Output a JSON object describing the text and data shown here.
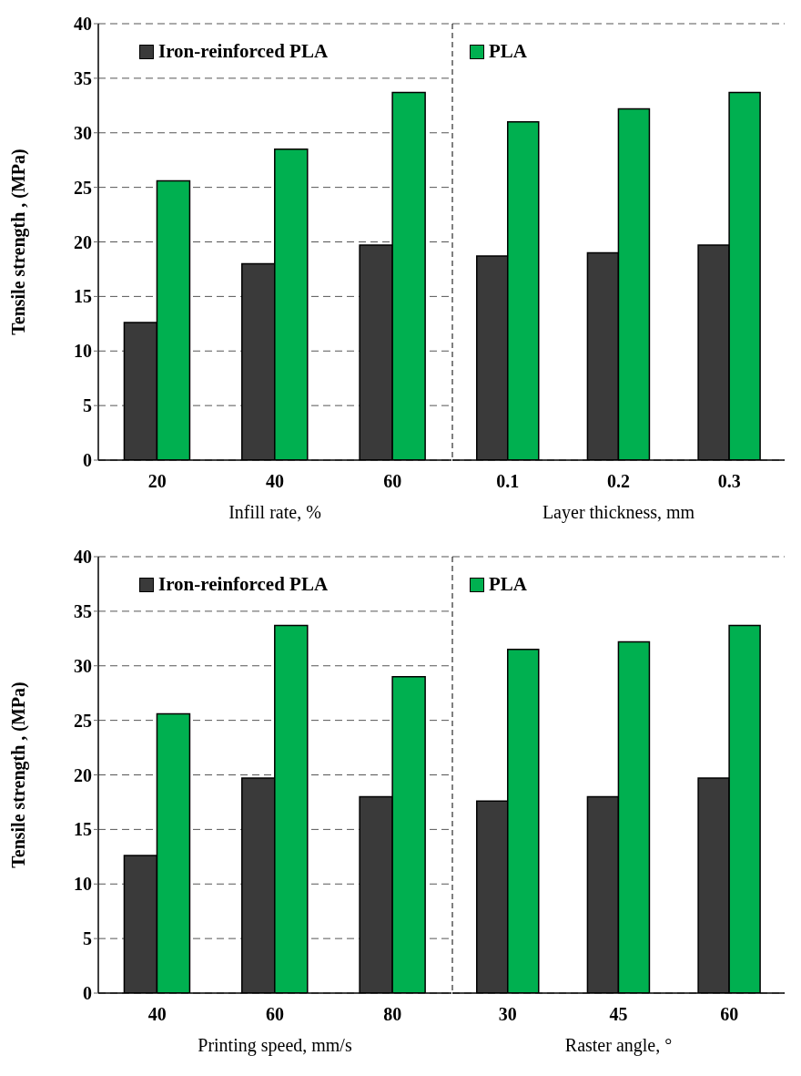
{
  "chart_data": [
    {
      "type": "bar",
      "ylabel": "Tensile strength , (MPa)",
      "xlabel": "Infill rate, %",
      "categories": [
        "20",
        "40",
        "60"
      ],
      "ylim": [
        0,
        40
      ],
      "yticks": [
        0,
        5,
        10,
        15,
        20,
        25,
        30,
        35,
        40
      ],
      "grid": "y",
      "legend": "top",
      "series": [
        {
          "name": "Iron-reinforced PLA",
          "color": "#3a3a3a",
          "values": [
            12.6,
            18.0,
            19.7
          ]
        },
        {
          "name": "PLA",
          "color": "#00b050",
          "values": [
            25.6,
            28.5,
            33.7
          ]
        }
      ]
    },
    {
      "type": "bar",
      "xlabel": "Layer thickness, mm",
      "categories": [
        "0.1",
        "0.2",
        "0.3"
      ],
      "ylim": [
        0,
        40
      ],
      "yticks": [
        0,
        5,
        10,
        15,
        20,
        25,
        30,
        35,
        40
      ],
      "grid": "y",
      "tick_labels": "x",
      "series": [
        {
          "color": "#3a3a3a",
          "values": [
            18.7,
            19.0,
            19.7
          ]
        },
        {
          "color": "#00b050",
          "values": [
            31.0,
            32.2,
            33.7
          ]
        }
      ]
    },
    {
      "type": "bar",
      "ylabel": "Tensile strength , (MPa)",
      "xlabel": "Printing speed, mm/s",
      "categories": [
        "40",
        "60",
        "80"
      ],
      "ylim": [
        0,
        40
      ],
      "yticks": [
        0,
        5,
        10,
        15,
        20,
        25,
        30,
        35,
        40
      ],
      "grid": "y",
      "legend": "top",
      "series": [
        {
          "name": "Iron-reinforced PLA",
          "color": "#3a3a3a",
          "values": [
            12.6,
            19.7,
            18.0
          ]
        },
        {
          "name": "PLA",
          "color": "#00b050",
          "values": [
            25.6,
            33.7,
            29.0
          ]
        }
      ]
    },
    {
      "type": "bar",
      "xlabel": "Raster angle, °",
      "categories": [
        "30",
        "45",
        "60"
      ],
      "ylim": [
        0,
        40
      ],
      "yticks": [
        0,
        5,
        10,
        15,
        20,
        25,
        30,
        35,
        40
      ],
      "grid": "y",
      "tick_labels": "x",
      "series": [
        {
          "color": "#3a3a3a",
          "values": [
            17.6,
            18.0,
            19.7
          ]
        },
        {
          "color": "#00b050",
          "values": [
            31.5,
            32.2,
            33.7
          ]
        }
      ]
    }
  ]
}
